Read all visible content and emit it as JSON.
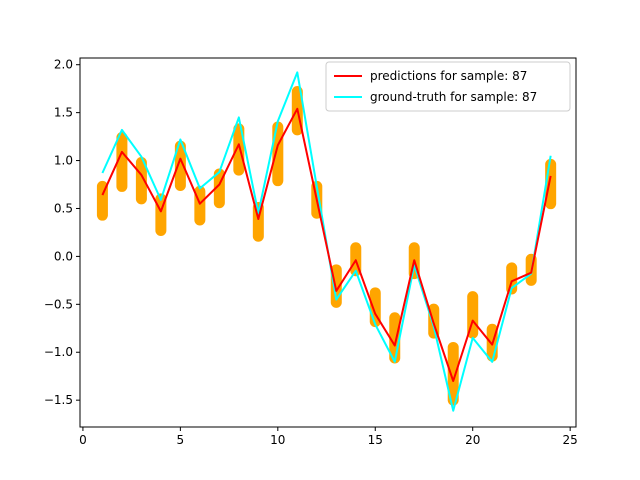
{
  "chart_data": {
    "type": "line",
    "title": "",
    "xlabel": "",
    "ylabel": "",
    "xlim": [
      -0.15,
      25.3
    ],
    "ylim": [
      -1.78,
      2.07
    ],
    "xticks": [
      0,
      5,
      10,
      15,
      20,
      25
    ],
    "yticks": [
      -1.5,
      -1.0,
      -0.5,
      0.0,
      0.5,
      1.0,
      1.5,
      2.0
    ],
    "xtick_labels": [
      "0",
      "5",
      "10",
      "15",
      "20",
      "25"
    ],
    "ytick_labels": [
      "−1.5",
      "−1.0",
      "−0.5",
      "0.0",
      "0.5",
      "1.0",
      "1.5",
      "2.0"
    ],
    "grid": false,
    "legend_position": "top-right",
    "x": [
      1,
      2,
      3,
      4,
      5,
      6,
      7,
      8,
      9,
      10,
      11,
      12,
      13,
      14,
      15,
      16,
      17,
      18,
      19,
      20,
      21,
      22,
      23,
      24
    ],
    "series": [
      {
        "name": "predictions for sample: 87",
        "color": "#ff0000",
        "values": [
          0.64,
          1.09,
          0.85,
          0.47,
          1.02,
          0.55,
          0.75,
          1.17,
          0.39,
          1.16,
          1.54,
          0.59,
          -0.36,
          -0.04,
          -0.6,
          -0.93,
          -0.04,
          -0.7,
          -1.3,
          -0.67,
          -0.92,
          -0.26,
          -0.17,
          0.84
        ]
      },
      {
        "name": "ground-truth for sample: 87",
        "color": "#00ffff",
        "values": [
          0.87,
          1.32,
          1.04,
          0.59,
          1.22,
          0.71,
          0.88,
          1.45,
          0.45,
          1.41,
          1.92,
          0.73,
          -0.45,
          -0.15,
          -0.71,
          -1.1,
          -0.09,
          -0.73,
          -1.61,
          -0.85,
          -1.1,
          -0.33,
          -0.18,
          1.05
        ]
      },
      {
        "name": "",
        "type": "scatter",
        "color": "#ffa500",
        "ranges": [
          [
            0.43,
            0.73
          ],
          [
            0.73,
            1.24
          ],
          [
            0.6,
            0.98
          ],
          [
            0.27,
            0.6
          ],
          [
            0.74,
            1.15
          ],
          [
            0.38,
            0.68
          ],
          [
            0.56,
            0.86
          ],
          [
            0.9,
            1.33
          ],
          [
            0.21,
            0.51
          ],
          [
            0.79,
            1.35
          ],
          [
            1.32,
            1.72
          ],
          [
            0.45,
            0.73
          ],
          [
            -0.48,
            -0.14
          ],
          [
            -0.15,
            0.09
          ],
          [
            -0.68,
            -0.38
          ],
          [
            -1.06,
            -0.64
          ],
          [
            -0.18,
            0.09
          ],
          [
            -0.8,
            -0.55
          ],
          [
            -1.5,
            -0.95
          ],
          [
            -0.8,
            -0.42
          ],
          [
            -1.04,
            -0.76
          ],
          [
            -0.34,
            -0.12
          ],
          [
            -0.25,
            -0.03
          ],
          [
            0.55,
            0.96
          ]
        ]
      }
    ]
  }
}
